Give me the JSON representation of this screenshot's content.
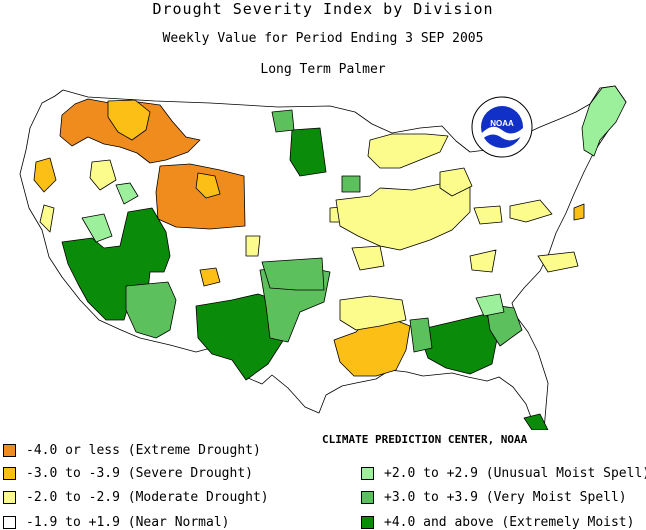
{
  "header": {
    "title": "Drought Severity Index by Division",
    "subtitle": "Weekly Value for Period Ending  3 SEP 2005",
    "index_name": "Long Term Palmer"
  },
  "logo": {
    "text": "NOAA",
    "ring_text": "NATIONAL OCEANIC AND ATMOSPHERIC ADMINISTRATION"
  },
  "credit": "CLIMATE PREDICTION CENTER, NOAA",
  "legend": [
    {
      "label": "-4.0 or less (Extreme Drought)",
      "color": "#f08c1e"
    },
    {
      "label": "-3.0 to -3.9 (Severe Drought)",
      "color": "#fcbf16"
    },
    {
      "label": "-2.0 to -2.9 (Moderate Drought)",
      "color": "#fcfc8c"
    },
    {
      "label": "-1.9 to +1.9 (Near Normal)",
      "color": "#ffffff"
    },
    {
      "label": "+2.0 to +2.9 (Unusual Moist Spell)",
      "color": "#9cf09c"
    },
    {
      "label": "+3.0 to +3.9 (Very Moist Spell)",
      "color": "#5cc05c"
    },
    {
      "label": "+4.0 and above (Extremely Moist)",
      "color": "#0a8c0a"
    }
  ]
}
